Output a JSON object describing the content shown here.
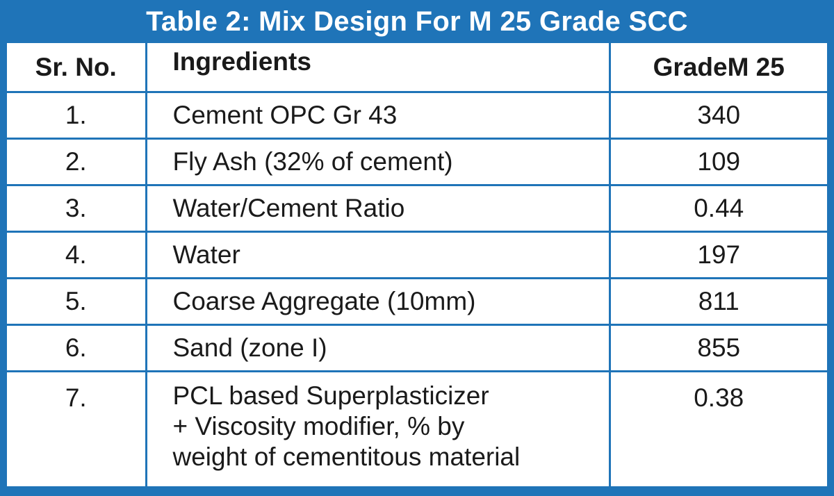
{
  "title": "Table 2: Mix Design For M 25 Grade SCC",
  "headers": {
    "sr_no": "Sr. No.",
    "ingredients": "Ingredients",
    "grade": "GradeM 25"
  },
  "rows": [
    {
      "sr": "1.",
      "ingredient": "Cement OPC Gr 43",
      "value": "340"
    },
    {
      "sr": "2.",
      "ingredient": "Fly Ash (32% of cement)",
      "value": "109"
    },
    {
      "sr": "3.",
      "ingredient": "Water/Cement Ratio",
      "value": "0.44"
    },
    {
      "sr": "4.",
      "ingredient": "Water",
      "value": "197"
    },
    {
      "sr": "5.",
      "ingredient": "Coarse Aggregate (10mm)",
      "value": "811"
    },
    {
      "sr": "6.",
      "ingredient": "Sand (zone I)",
      "value": "855"
    },
    {
      "sr": "7.",
      "ingredient_lines": [
        "PCL based Superplasticizer",
        "+ Viscosity modifier, % by",
        "weight of cementitous material"
      ],
      "value": "0.38"
    }
  ],
  "colors": {
    "frame": "#1f74b8",
    "background": "#ffffff",
    "text": "#1a1a1a",
    "title_text": "#ffffff"
  }
}
